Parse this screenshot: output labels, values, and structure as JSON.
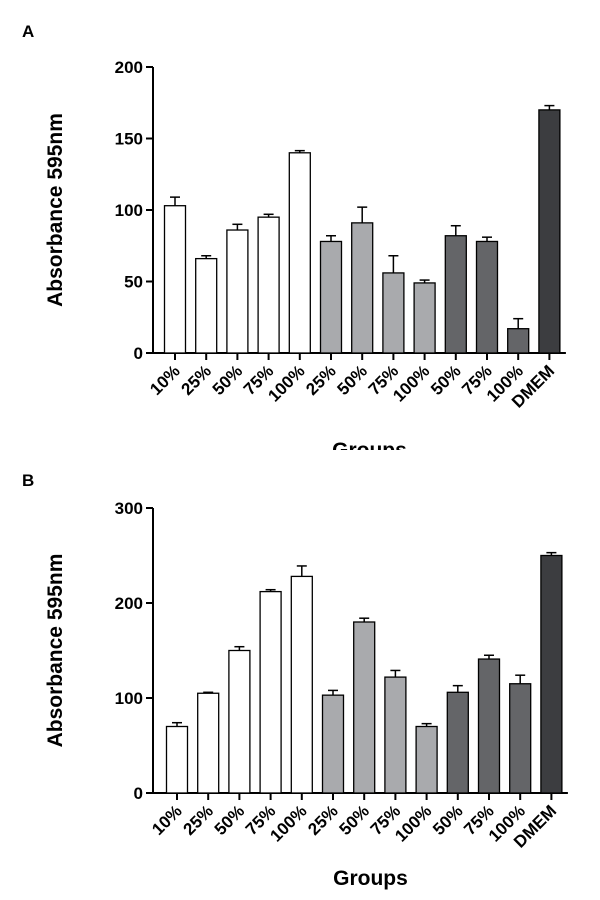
{
  "colors": {
    "white_group": "#ffffff",
    "light_gray_group": "#a9aaad",
    "dark_gray_group": "#646568",
    "control": "#3c3d40",
    "axis": "#000000"
  },
  "chart_data": [
    {
      "panel": "A",
      "type": "bar",
      "xlabel": "Groups",
      "ylabel": "Absorbance 595nm",
      "ylim": [
        0,
        200
      ],
      "yticks": [
        "0",
        "50",
        "100",
        "150",
        "200"
      ],
      "categories": [
        "10%",
        "25%",
        "50%",
        "75%",
        "100%",
        "25%",
        "50%",
        "75%",
        "100%",
        "50%",
        "75%",
        "100%",
        "DMEM"
      ],
      "values": [
        103,
        66,
        86,
        95,
        140,
        78,
        91,
        56,
        49,
        82,
        78,
        17,
        170
      ],
      "errors": [
        6,
        2,
        4,
        2,
        1.5,
        4,
        11,
        12,
        2,
        7,
        3,
        7,
        3
      ],
      "bar_groups": [
        "white_group",
        "white_group",
        "white_group",
        "white_group",
        "white_group",
        "light_gray_group",
        "light_gray_group",
        "light_gray_group",
        "light_gray_group",
        "dark_gray_group",
        "dark_gray_group",
        "dark_gray_group",
        "control"
      ],
      "grid": false
    },
    {
      "panel": "B",
      "type": "bar",
      "xlabel": "Groups",
      "ylabel": "Absorbance 595nm",
      "ylim": [
        0,
        300
      ],
      "yticks": [
        "0",
        "100",
        "200",
        "300"
      ],
      "categories": [
        "10%",
        "25%",
        "50%",
        "75%",
        "100%",
        "25%",
        "50%",
        "75%",
        "100%",
        "50%",
        "75%",
        "100%",
        "DMEM"
      ],
      "values": [
        70,
        105,
        150,
        212,
        228,
        103,
        180,
        122,
        70,
        106,
        141,
        115,
        250
      ],
      "errors": [
        4,
        1,
        4,
        2,
        11,
        5,
        4,
        7,
        3,
        7,
        4,
        9,
        3
      ],
      "bar_groups": [
        "white_group",
        "white_group",
        "white_group",
        "white_group",
        "white_group",
        "light_gray_group",
        "light_gray_group",
        "light_gray_group",
        "light_gray_group",
        "dark_gray_group",
        "dark_gray_group",
        "dark_gray_group",
        "control"
      ],
      "grid": false
    }
  ]
}
